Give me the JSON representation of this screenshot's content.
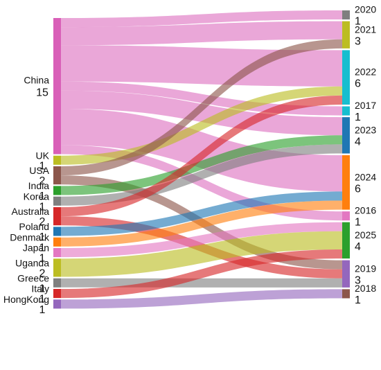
{
  "chart_data": {
    "type": "sankey",
    "title": "",
    "sources": [
      {
        "name": "China",
        "value": "15",
        "color": "#d95fb8"
      },
      {
        "name": "UK",
        "value": "1",
        "color": "#bcbd22"
      },
      {
        "name": "USA",
        "value": "2",
        "color": "#8c564b"
      },
      {
        "name": "India",
        "value": "1",
        "color": "#2ca02c"
      },
      {
        "name": "Korea",
        "value": "1",
        "color": "#7f7f7f"
      },
      {
        "name": "Australia",
        "value": "2",
        "color": "#d62728"
      },
      {
        "name": "Poland",
        "value": "1",
        "color": "#1f77b4"
      },
      {
        "name": "Denmark",
        "value": "1",
        "color": "#ff7f0e"
      },
      {
        "name": "Japan",
        "value": "1",
        "color": "#e377c2"
      },
      {
        "name": "Uganda",
        "value": "2",
        "color": "#bcbd22"
      },
      {
        "name": "Greece",
        "value": "1",
        "color": "#7f7f7f"
      },
      {
        "name": "Italy",
        "value": "1",
        "color": "#d62728"
      },
      {
        "name": "HongKong",
        "value": "1",
        "color": "#9467bd"
      }
    ],
    "targets": [
      {
        "name": "2020",
        "value": "1",
        "color": "#7f7f7f"
      },
      {
        "name": "2021",
        "value": "3",
        "color": "#bcbd22"
      },
      {
        "name": "2022",
        "value": "6",
        "color": "#17becf"
      },
      {
        "name": "2017",
        "value": "1",
        "color": "#17becf"
      },
      {
        "name": "2023",
        "value": "4",
        "color": "#1f77b4"
      },
      {
        "name": "2024",
        "value": "6",
        "color": "#ff7f0e"
      },
      {
        "name": "2016",
        "value": "1",
        "color": "#e377c2"
      },
      {
        "name": "2025",
        "value": "4",
        "color": "#2ca02c"
      },
      {
        "name": "2019",
        "value": "3",
        "color": "#9467bd"
      },
      {
        "name": "2018",
        "value": "1",
        "color": "#8c564b"
      }
    ],
    "links": [
      {
        "source": "China",
        "target": "2020",
        "value": 1
      },
      {
        "source": "China",
        "target": "2021",
        "value": 2
      },
      {
        "source": "China",
        "target": "2022",
        "value": 4
      },
      {
        "source": "China",
        "target": "2017",
        "value": 1
      },
      {
        "source": "China",
        "target": "2023",
        "value": 2
      },
      {
        "source": "China",
        "target": "2024",
        "value": 4
      },
      {
        "source": "China",
        "target": "2016",
        "value": 1
      },
      {
        "source": "UK",
        "target": "2022",
        "value": 1
      },
      {
        "source": "USA",
        "target": "2021",
        "value": 1
      },
      {
        "source": "USA",
        "target": "2019",
        "value": 1
      },
      {
        "source": "India",
        "target": "2023",
        "value": 1
      },
      {
        "source": "Korea",
        "target": "2023",
        "value": 1
      },
      {
        "source": "Australia",
        "target": "2022",
        "value": 1
      },
      {
        "source": "Australia",
        "target": "2019",
        "value": 1
      },
      {
        "source": "Poland",
        "target": "2024",
        "value": 1
      },
      {
        "source": "Denmark",
        "target": "2024",
        "value": 1
      },
      {
        "source": "Japan",
        "target": "2025",
        "value": 1
      },
      {
        "source": "Uganda",
        "target": "2025",
        "value": 2
      },
      {
        "source": "Greece",
        "target": "2019",
        "value": 1
      },
      {
        "source": "Italy",
        "target": "2025",
        "value": 1
      },
      {
        "source": "HongKong",
        "target": "2018",
        "value": 1
      }
    ]
  }
}
